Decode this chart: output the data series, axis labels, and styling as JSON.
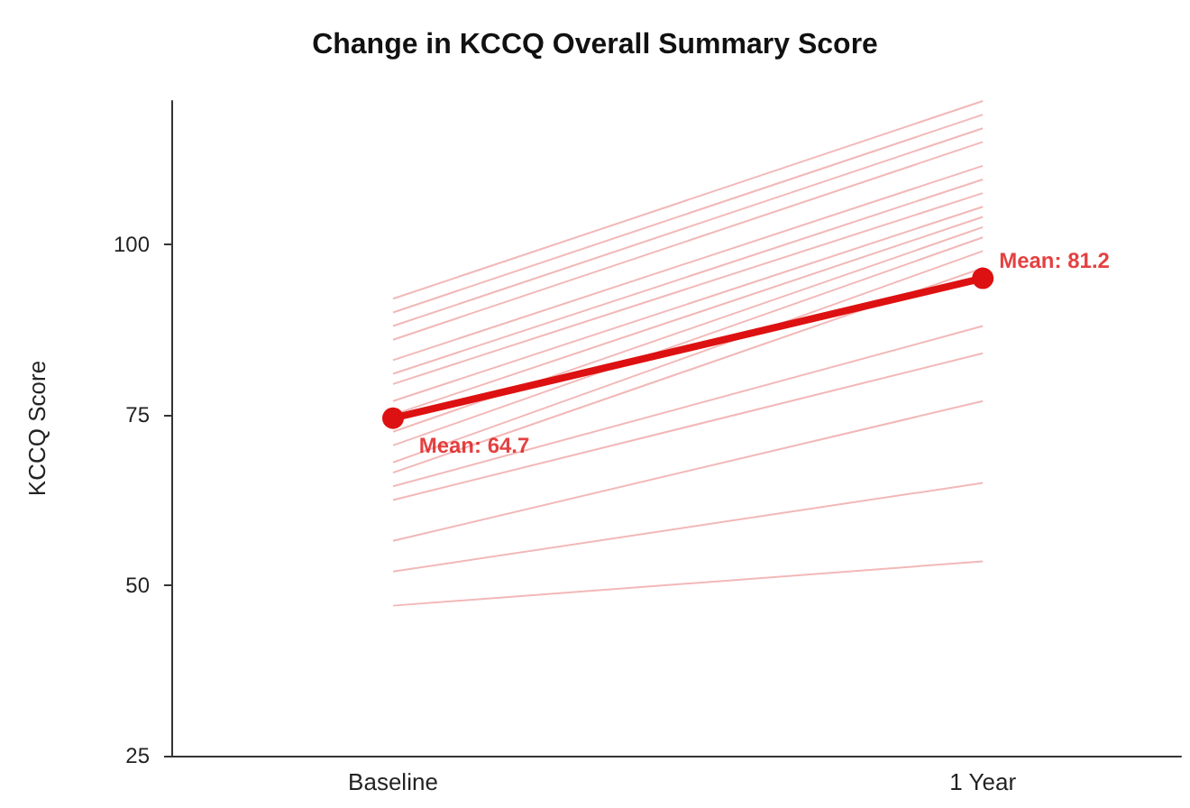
{
  "chart_data": {
    "type": "line",
    "title": "Change in KCCQ Overall Summary Score",
    "ylabel": "KCCQ Score",
    "categories": [
      "Baseline",
      "1 Year"
    ],
    "ylim": [
      25,
      121
    ],
    "yticks": [
      25,
      50,
      75,
      100
    ],
    "marker": "none",
    "series": [
      {
        "color": "#f2b8b8",
        "values": [
          92,
          121
        ]
      },
      {
        "color": "#f2b8b8",
        "values": [
          90,
          119
        ]
      },
      {
        "color": "#f2b8b8",
        "values": [
          88,
          117
        ]
      },
      {
        "color": "#f2b8b8",
        "values": [
          86,
          115
        ]
      },
      {
        "color": "#f2b8b8",
        "values": [
          83,
          111.5
        ]
      },
      {
        "color": "#f2b8b8",
        "values": [
          81,
          109.5
        ]
      },
      {
        "color": "#f2b8b8",
        "values": [
          79.5,
          107.5
        ]
      },
      {
        "color": "#f2b8b8",
        "values": [
          77,
          105.5
        ]
      },
      {
        "color": "#f2b8b8",
        "values": [
          75,
          104
        ]
      },
      {
        "color": "#f2b8b8",
        "values": [
          72.5,
          102.5
        ]
      },
      {
        "color": "#f2b8b8",
        "values": [
          70.5,
          101
        ]
      },
      {
        "color": "#f2b8b8",
        "values": [
          68,
          99
        ]
      },
      {
        "color": "#f2b8b8",
        "values": [
          66.5,
          96.5
        ]
      },
      {
        "color": "#f2b8b8",
        "values": [
          64.5,
          88
        ]
      },
      {
        "color": "#f2b8b8",
        "values": [
          62.5,
          84
        ]
      },
      {
        "color": "#f2b8b8",
        "values": [
          56.5,
          77
        ]
      },
      {
        "color": "#f2b8b8",
        "values": [
          52,
          65
        ]
      },
      {
        "color": "#f2b8b8",
        "values": [
          47,
          53.5
        ]
      },
      {
        "color": "#dd1111",
        "values": [
          74.5,
          95
        ],
        "marker": "circle"
      }
    ],
    "annotations": [
      {
        "text": "Mean: 64.7",
        "x": "Baseline",
        "y": 74.5
      },
      {
        "text": "Mean: 81.2",
        "x": "1 Year",
        "y": 95
      }
    ]
  }
}
